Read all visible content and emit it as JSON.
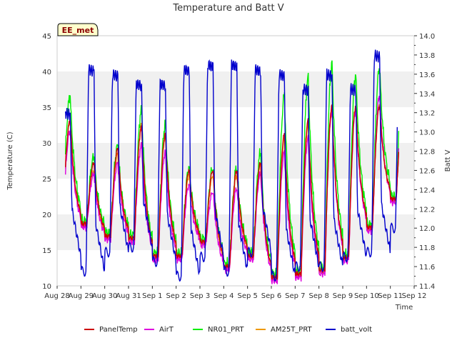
{
  "chart_data": {
    "type": "line",
    "title": "Temperature and Batt V",
    "badge": "EE_met",
    "xlabel": "Time",
    "ylabel": "Temperature (C)",
    "y2label": "Batt V",
    "xlim": [
      0,
      15
    ],
    "ylim": [
      10,
      45
    ],
    "y2lim": [
      11.4,
      14.0
    ],
    "x_ticks": [
      {
        "v": 0,
        "label": "Aug 28"
      },
      {
        "v": 1,
        "label": "Aug 29"
      },
      {
        "v": 2,
        "label": "Aug 30"
      },
      {
        "v": 3,
        "label": "Aug 31"
      },
      {
        "v": 4,
        "label": "Sep 1"
      },
      {
        "v": 5,
        "label": "Sep 2"
      },
      {
        "v": 6,
        "label": "Sep 3"
      },
      {
        "v": 7,
        "label": "Sep 4"
      },
      {
        "v": 8,
        "label": "Sep 5"
      },
      {
        "v": 9,
        "label": "Sep 6"
      },
      {
        "v": 10,
        "label": "Sep 7"
      },
      {
        "v": 11,
        "label": "Sep 8"
      },
      {
        "v": 12,
        "label": "Sep 9"
      },
      {
        "v": 13,
        "label": "Sep 10"
      },
      {
        "v": 14,
        "label": "Sep 11"
      },
      {
        "v": 15,
        "label": "Sep 12"
      }
    ],
    "y_ticks": [
      10,
      15,
      20,
      25,
      30,
      35,
      40,
      45
    ],
    "y2_ticks": [
      "11.4",
      "11.6",
      "11.8",
      "12.0",
      "12.2",
      "12.4",
      "12.6",
      "12.8",
      "13.0",
      "13.2",
      "13.4",
      "13.6",
      "13.8",
      "14.0"
    ],
    "bands": [
      [
        15,
        20
      ],
      [
        25,
        30
      ],
      [
        35,
        40
      ]
    ],
    "band_color": "#f0f0f0",
    "legend_position": "bottom",
    "daily": {
      "x_days": [
        0.3,
        1,
        2,
        3,
        4,
        5,
        6,
        7,
        8,
        9,
        10,
        11,
        12,
        13,
        14,
        14.2
      ],
      "panel_min": [
        20.0,
        18.5,
        16.8,
        16.5,
        14.0,
        14.0,
        16.0,
        12.5,
        14.0,
        11.0,
        11.5,
        12.0,
        13.8,
        18.0,
        22.0
      ],
      "panel_max": [
        33.0,
        27.0,
        29.0,
        32.0,
        31.0,
        26.0,
        26.0,
        26.0,
        27.0,
        31.0,
        33.0,
        35.0,
        35.0,
        35.0
      ],
      "airt_max": [
        32.0,
        26.0,
        27.5,
        30.0,
        29.0,
        24.5,
        23.5,
        24.0,
        26.0,
        29.0,
        31.0,
        35.0,
        35.0,
        37.0
      ],
      "nr01_max": [
        36.0,
        27.5,
        29.0,
        34.0,
        32.0,
        26.0,
        26.0,
        26.0,
        28.0,
        36.0,
        38.5,
        40.5,
        39.0,
        40.0
      ],
      "am25_max": [
        33.0,
        26.0,
        28.5,
        32.5,
        31.0,
        25.5,
        25.5,
        25.5,
        27.0,
        30.5,
        32.5,
        34.5,
        35.0,
        35.5
      ],
      "batt_min": [
        11.7,
        11.55,
        11.75,
        11.8,
        11.65,
        11.5,
        11.7,
        11.55,
        11.75,
        11.5,
        11.6,
        11.6,
        11.7,
        11.75,
        12.0
      ],
      "batt_max": [
        13.2,
        13.65,
        13.6,
        13.5,
        13.5,
        13.65,
        13.7,
        13.7,
        13.65,
        13.6,
        13.45,
        13.6,
        13.45,
        13.8,
        13.5
      ]
    },
    "series": [
      {
        "name": "PanelTemp",
        "color": "#cc0000",
        "axis": "left"
      },
      {
        "name": "AirT",
        "color": "#dd00dd",
        "axis": "left"
      },
      {
        "name": "NR01_PRT",
        "color": "#00ee00",
        "axis": "left"
      },
      {
        "name": "AM25T_PRT",
        "color": "#ee9900",
        "axis": "left"
      },
      {
        "name": "batt_volt",
        "color": "#0000cc",
        "axis": "right"
      }
    ]
  }
}
